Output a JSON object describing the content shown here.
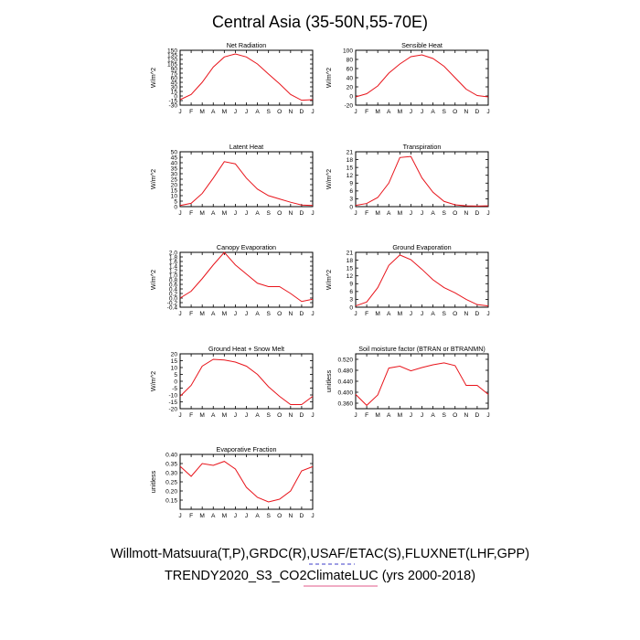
{
  "figure": {
    "title": "Central Asia (35-50N,55-70E)",
    "footer_line1": "Willmott-Matsuura(T,P),GRDC(R),USAF/ETAC(S),FLUXNET(LHF,GPP)",
    "footer_line2": "TRENDY2020_S3_CO2ClimateLUC (yrs 2000-2018)",
    "colors": {
      "line": "#e8141b",
      "axis": "#000000",
      "underline_blue": "#3d3dc8",
      "underline_red": "#e05a8a"
    }
  },
  "chart_data": [
    {
      "type": "line",
      "title": "Net Radiation",
      "ylabel": "W/m^2",
      "categories": [
        "J",
        "F",
        "M",
        "A",
        "M",
        "J",
        "J",
        "A",
        "S",
        "O",
        "N",
        "D",
        "J"
      ],
      "ylim": [
        -30,
        150
      ],
      "yticks": [
        -30,
        -15,
        0,
        15,
        30,
        45,
        60,
        75,
        90,
        105,
        120,
        135,
        150
      ],
      "series": [
        {
          "values": [
            -12,
            5,
            45,
            95,
            128,
            138,
            128,
            105,
            72,
            40,
            5,
            -14,
            -12
          ]
        }
      ]
    },
    {
      "type": "line",
      "title": "Sensible Heat",
      "ylabel": "W/m^2",
      "categories": [
        "J",
        "F",
        "M",
        "A",
        "M",
        "J",
        "J",
        "A",
        "S",
        "O",
        "N",
        "D",
        "J"
      ],
      "ylim": [
        -20,
        100
      ],
      "yticks": [
        -20,
        0,
        20,
        40,
        60,
        80,
        100
      ],
      "series": [
        {
          "values": [
            -2,
            5,
            22,
            50,
            70,
            86,
            90,
            82,
            65,
            40,
            15,
            1,
            -2
          ]
        }
      ]
    },
    {
      "type": "line",
      "title": "Latent Heat",
      "ylabel": "W/m^2",
      "categories": [
        "J",
        "F",
        "M",
        "A",
        "M",
        "J",
        "J",
        "A",
        "S",
        "O",
        "N",
        "D",
        "J"
      ],
      "ylim": [
        0,
        50
      ],
      "yticks": [
        0,
        5,
        10,
        15,
        20,
        25,
        30,
        35,
        40,
        45,
        50
      ],
      "series": [
        {
          "values": [
            1,
            3,
            12,
            26,
            41,
            39,
            26,
            16,
            10,
            7,
            4,
            1.5,
            1
          ]
        }
      ]
    },
    {
      "type": "line",
      "title": "Transpiration",
      "ylabel": "W/m^2",
      "categories": [
        "J",
        "F",
        "M",
        "A",
        "M",
        "J",
        "J",
        "A",
        "S",
        "O",
        "N",
        "D",
        "J"
      ],
      "ylim": [
        0,
        21
      ],
      "yticks": [
        0,
        3,
        6,
        9,
        12,
        15,
        18,
        21
      ],
      "series": [
        {
          "values": [
            0.5,
            1.2,
            3.5,
            9,
            18.8,
            19.2,
            11,
            5.5,
            2,
            0.7,
            0.3,
            0.2,
            0.3
          ]
        }
      ]
    },
    {
      "type": "line",
      "title": "Canopy Evaporation",
      "ylabel": "W/m^2",
      "categories": [
        "J",
        "F",
        "M",
        "A",
        "M",
        "J",
        "J",
        "A",
        "S",
        "O",
        "N",
        "D",
        "J"
      ],
      "ylim": [
        -0.4,
        2.0
      ],
      "yticks": [
        -0.4,
        -0.2,
        0,
        0.2,
        0.4,
        0.6,
        0.8,
        1.0,
        1.2,
        1.4,
        1.6,
        1.8,
        2.0
      ],
      "series": [
        {
          "values": [
            0.0,
            0.3,
            0.85,
            1.45,
            2.0,
            1.45,
            1.05,
            0.65,
            0.5,
            0.5,
            0.2,
            -0.15,
            -0.05
          ]
        }
      ]
    },
    {
      "type": "line",
      "title": "Ground Evaporation",
      "ylabel": "W/m^2",
      "categories": [
        "J",
        "F",
        "M",
        "A",
        "M",
        "J",
        "J",
        "A",
        "S",
        "O",
        "N",
        "D",
        "J"
      ],
      "ylim": [
        0,
        21
      ],
      "yticks": [
        0,
        3,
        6,
        9,
        12,
        15,
        18,
        21
      ],
      "series": [
        {
          "values": [
            0.5,
            2,
            7.5,
            16,
            20,
            18.2,
            14.5,
            10.5,
            7.5,
            5.5,
            3,
            1,
            0.5
          ]
        }
      ]
    },
    {
      "type": "line",
      "title": "Ground Heat + Snow Melt",
      "ylabel": "W/m^2",
      "categories": [
        "J",
        "F",
        "M",
        "A",
        "M",
        "J",
        "J",
        "A",
        "S",
        "O",
        "N",
        "D",
        "J"
      ],
      "ylim": [
        -20,
        20
      ],
      "yticks": [
        -20,
        -15,
        -10,
        -5,
        0,
        5,
        10,
        15,
        20
      ],
      "series": [
        {
          "values": [
            -11,
            -3,
            11,
            16,
            15.5,
            14,
            11,
            5,
            -4,
            -11,
            -17,
            -17,
            -11
          ]
        }
      ]
    },
    {
      "type": "line",
      "title": "Soil moisture factor (BTRAN or BTRANMN)",
      "ylabel": "unitless",
      "categories": [
        "J",
        "F",
        "M",
        "A",
        "M",
        "J",
        "J",
        "A",
        "S",
        "O",
        "N",
        "D",
        "J"
      ],
      "ylim": [
        0.34,
        0.54
      ],
      "yticks": [
        0.36,
        0.4,
        0.44,
        0.48,
        0.52
      ],
      "ytick_labels": [
        "0.360",
        "0.400",
        "0.440",
        "0.480",
        "0.520"
      ],
      "series": [
        {
          "values": [
            0.392,
            0.352,
            0.39,
            0.488,
            0.495,
            0.478,
            0.49,
            0.5,
            0.507,
            0.497,
            0.425,
            0.425,
            0.392
          ]
        }
      ]
    },
    {
      "type": "line",
      "title": "Evaporative Fraction",
      "ylabel": "unitless",
      "categories": [
        "J",
        "F",
        "M",
        "A",
        "M",
        "J",
        "J",
        "A",
        "S",
        "O",
        "N",
        "D",
        "J"
      ],
      "ylim": [
        0.1,
        0.4
      ],
      "yticks": [
        0.1,
        0.15,
        0.2,
        0.25,
        0.3,
        0.35,
        0.4
      ],
      "ytick_labels": [
        "",
        "0.15",
        "0.20",
        "0.25",
        "0.30",
        "0.35",
        "0.40"
      ],
      "series": [
        {
          "values": [
            0.335,
            0.28,
            0.35,
            0.34,
            0.362,
            0.32,
            0.22,
            0.165,
            0.14,
            0.155,
            0.2,
            0.31,
            0.333
          ]
        }
      ]
    }
  ]
}
